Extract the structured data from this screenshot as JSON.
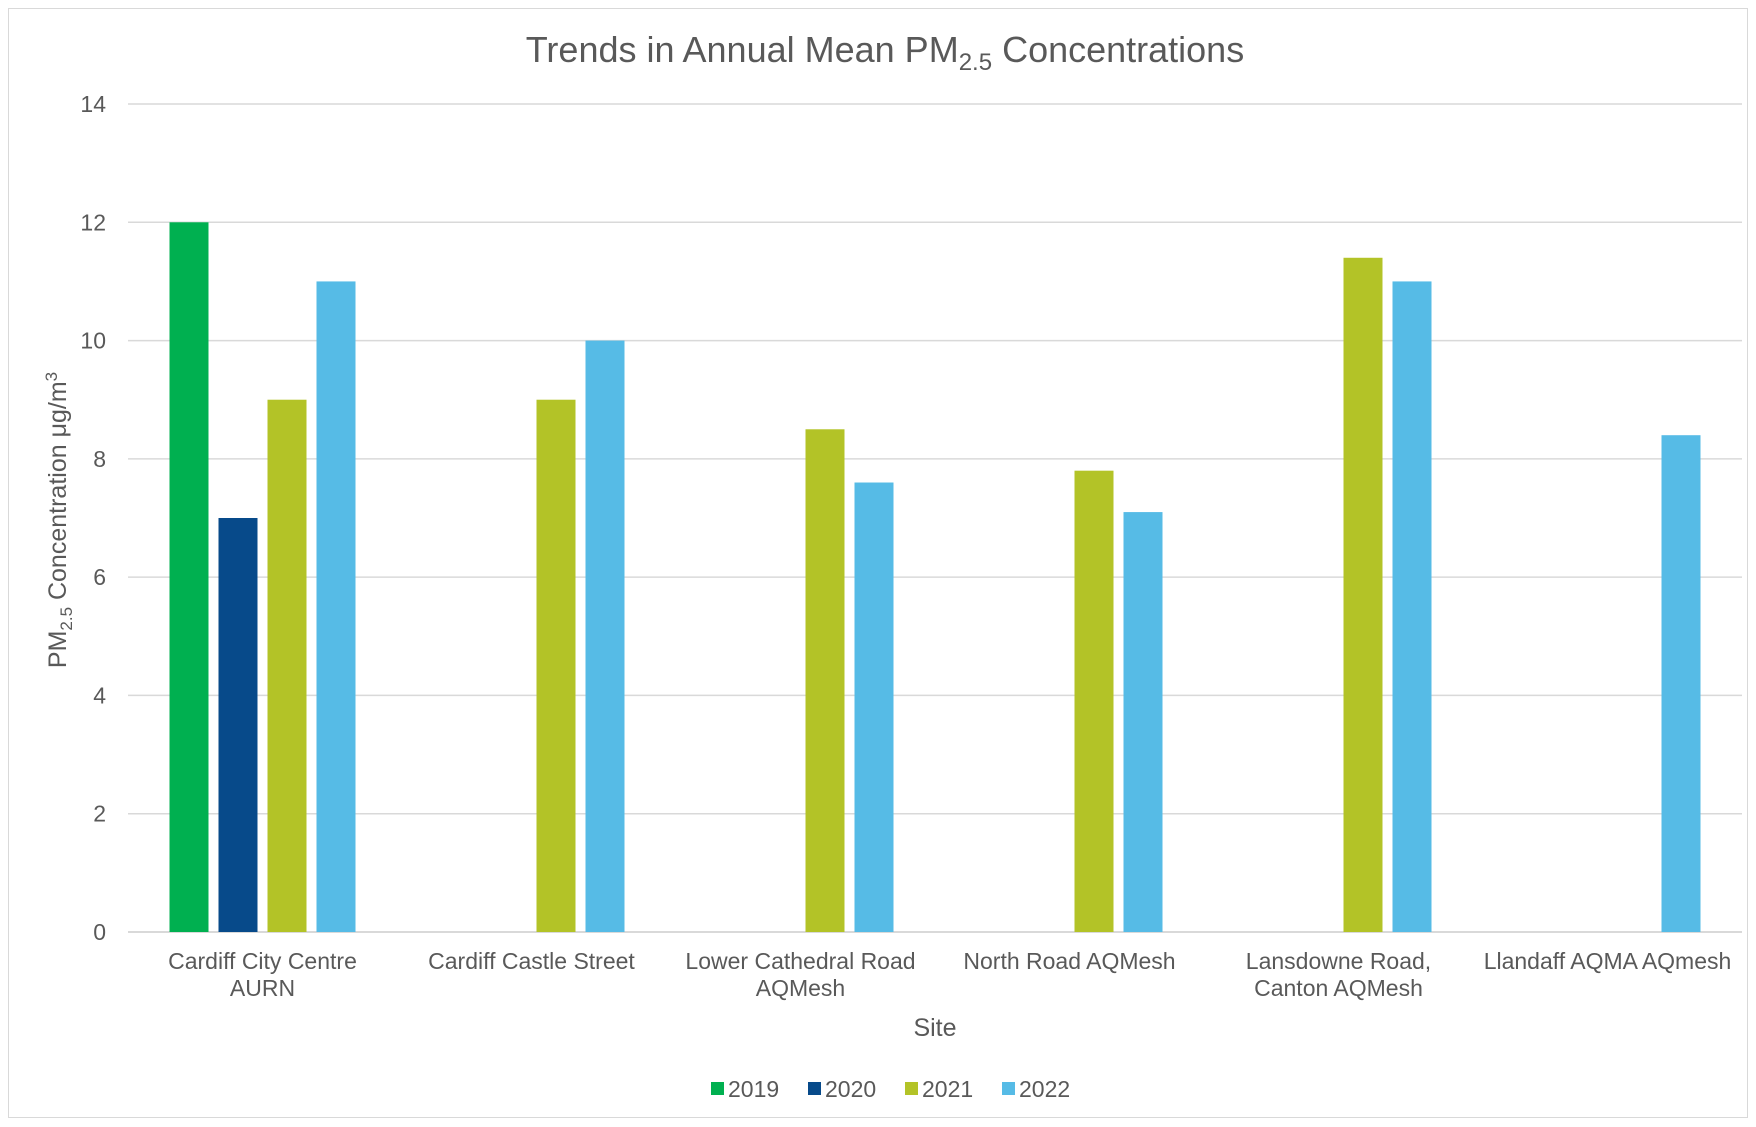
{
  "chart_data": {
    "type": "bar",
    "title_main": "Trends in Annual Mean PM",
    "title_sub": "2.5",
    "title_end": " Concentrations",
    "xlabel": "Site",
    "ylabel_main": "PM",
    "ylabel_sub": "2.5",
    "ylabel_mid": " Concentration μg/m",
    "ylabel_sup": "3",
    "ylim": [
      0,
      14
    ],
    "yticks": [
      0,
      2,
      4,
      6,
      8,
      10,
      12,
      14
    ],
    "grid": true,
    "legend_position": "bottom",
    "categories": [
      [
        "Cardiff City Centre",
        "AURN"
      ],
      [
        "Cardiff Castle Street"
      ],
      [
        "Lower Cathedral Road",
        "AQMesh"
      ],
      [
        "North Road AQMesh"
      ],
      [
        "Lansdowne Road,",
        "Canton AQMesh"
      ],
      [
        "Llandaff AQMA AQmesh"
      ]
    ],
    "series": [
      {
        "name": "2019",
        "color": "#00b050",
        "values": [
          12,
          null,
          null,
          null,
          null,
          null
        ]
      },
      {
        "name": "2020",
        "color": "#074a8a",
        "values": [
          7,
          null,
          null,
          null,
          null,
          null
        ]
      },
      {
        "name": "2021",
        "color": "#b3c327",
        "values": [
          9,
          9,
          8.5,
          7.8,
          11.4,
          null
        ]
      },
      {
        "name": "2022",
        "color": "#56bbe6",
        "values": [
          11,
          10,
          7.6,
          7.1,
          11,
          8.4
        ]
      }
    ]
  }
}
